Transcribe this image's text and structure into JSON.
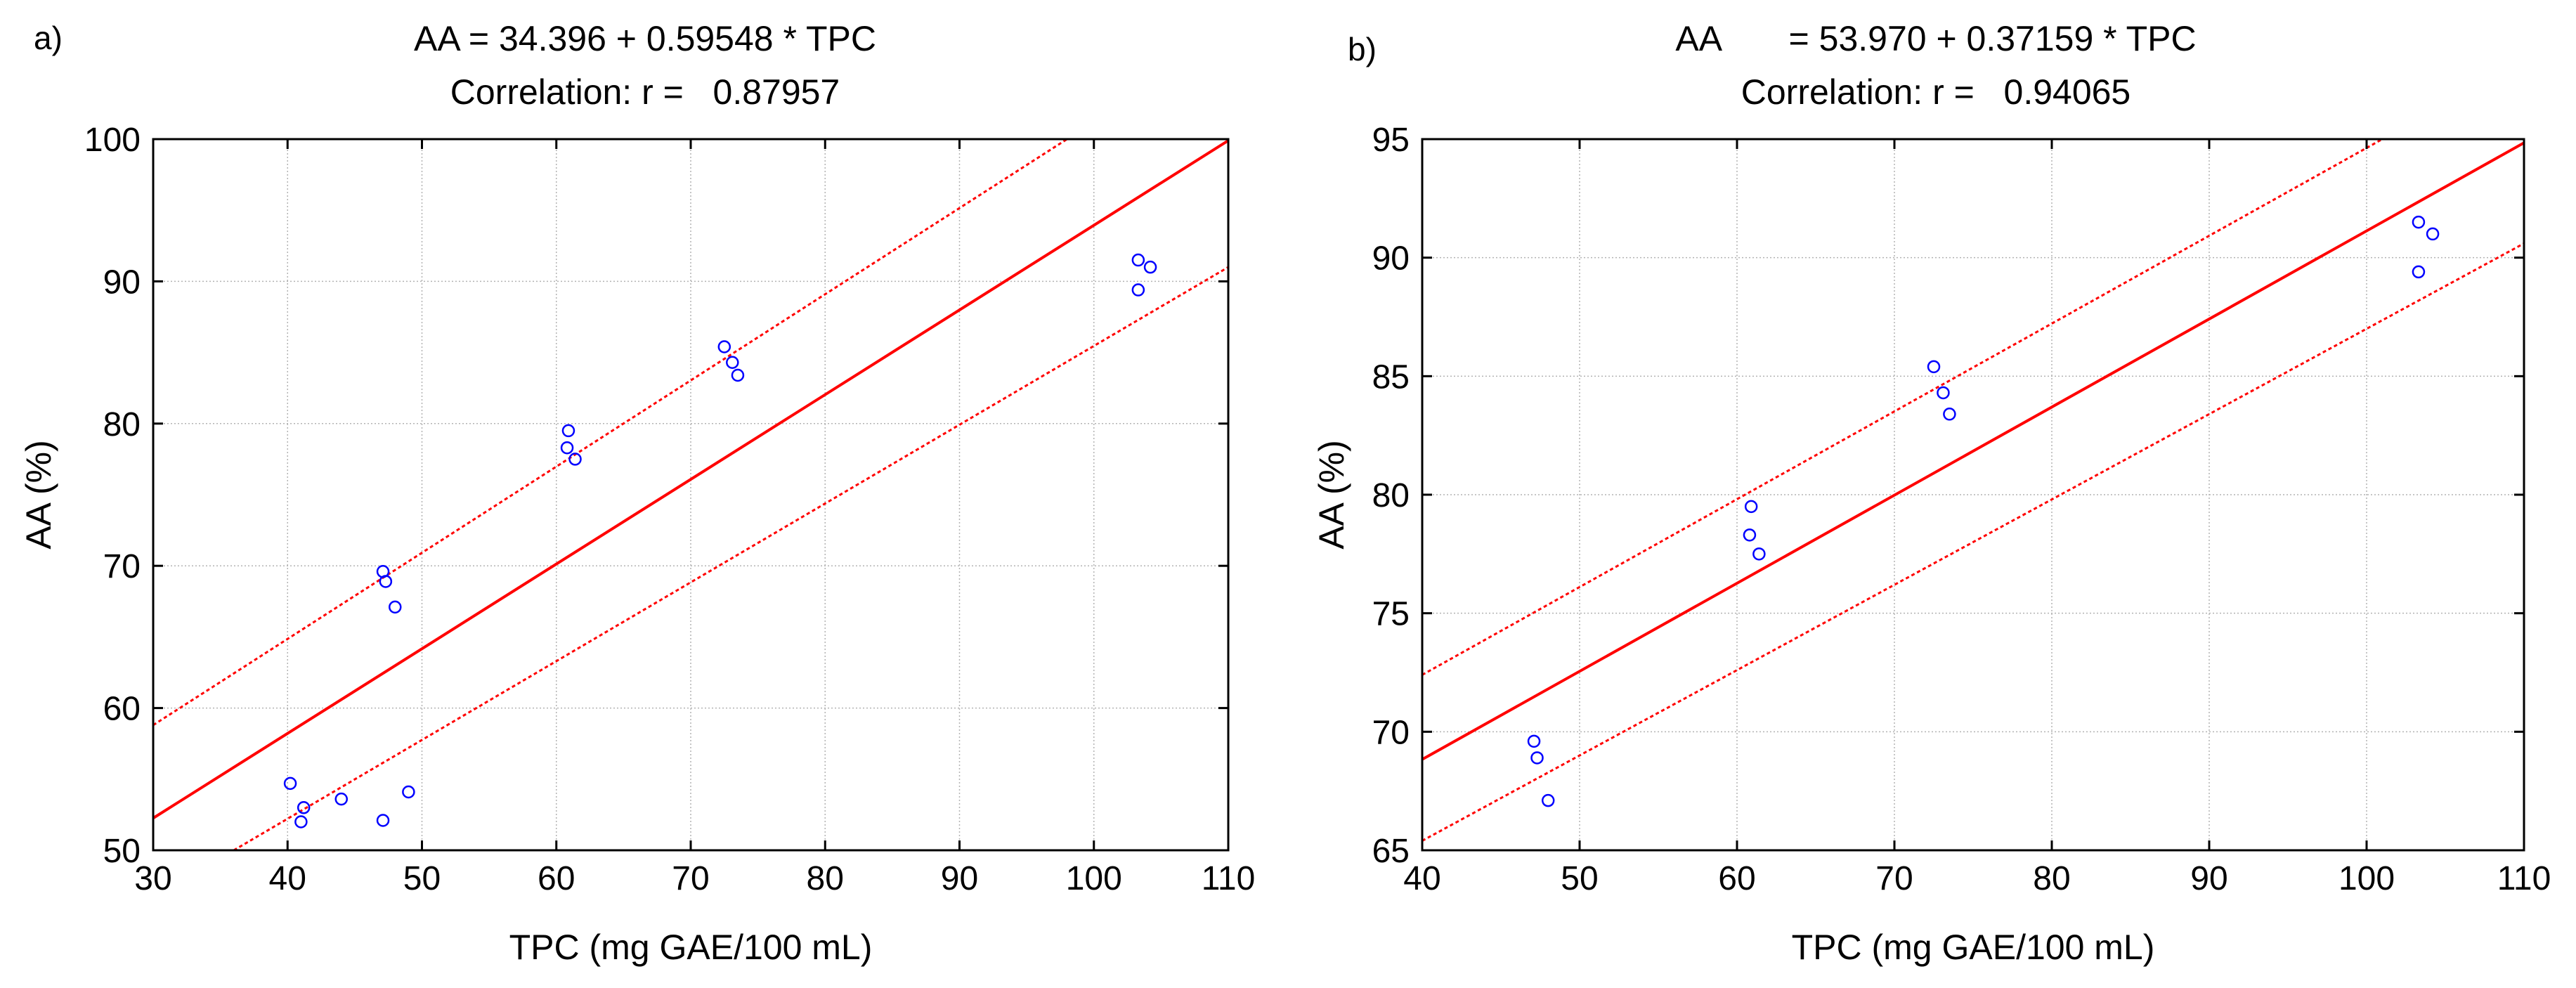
{
  "chart_data": [
    {
      "panel": "a)",
      "type": "scatter",
      "title_line1": "AA = 34.396 + 0.59548 * TPC",
      "title_line2": "Correlation: r =   0.87957",
      "xlabel": "TPC (mg GAE/100 mL)",
      "ylabel": "AA (%)",
      "xlim": [
        30,
        110
      ],
      "ylim": [
        50,
        100
      ],
      "xticks": [
        30,
        40,
        50,
        60,
        70,
        80,
        90,
        100,
        110
      ],
      "yticks": [
        50,
        60,
        70,
        80,
        90,
        100
      ],
      "grid": true,
      "regression": {
        "intercept": 34.396,
        "slope": 0.59548
      },
      "confidence_band": {
        "upper": [
          [
            30,
            58.8
          ],
          [
            98,
            100
          ]
        ],
        "lower": [
          [
            36,
            50
          ],
          [
            110,
            91
          ]
        ]
      },
      "points": [
        [
          40.2,
          54.7
        ],
        [
          41.2,
          53.0
        ],
        [
          41.0,
          52.0
        ],
        [
          44.0,
          53.6
        ],
        [
          47.1,
          52.1
        ],
        [
          49.0,
          54.1
        ],
        [
          47.1,
          69.6
        ],
        [
          47.3,
          68.9
        ],
        [
          48.0,
          67.1
        ],
        [
          60.9,
          79.5
        ],
        [
          60.8,
          78.3
        ],
        [
          61.4,
          77.5
        ],
        [
          72.5,
          85.4
        ],
        [
          73.1,
          84.3
        ],
        [
          73.5,
          83.4
        ],
        [
          103.3,
          91.5
        ],
        [
          104.2,
          91.0
        ],
        [
          103.3,
          89.4
        ]
      ],
      "colors": {
        "points": "#0000ff",
        "lines": "#ff0000"
      }
    },
    {
      "panel": "b)",
      "type": "scatter",
      "title_line1": "AA       = 53.970 + 0.37159 * TPC",
      "title_line2": "Correlation: r =   0.94065",
      "xlabel": "TPC (mg GAE/100 mL)",
      "ylabel": "AA (%)",
      "xlim": [
        40,
        110
      ],
      "ylim": [
        65,
        95
      ],
      "xticks": [
        40,
        50,
        60,
        70,
        80,
        90,
        100,
        110
      ],
      "yticks": [
        65,
        70,
        75,
        80,
        85,
        90,
        95
      ],
      "grid": true,
      "regression": {
        "intercept": 53.97,
        "slope": 0.37159
      },
      "confidence_band": {
        "upper": [
          [
            40,
            72.4
          ],
          [
            101,
            95
          ]
        ],
        "lower": [
          [
            40,
            65.4
          ],
          [
            110,
            90.6
          ]
        ]
      },
      "points": [
        [
          47.1,
          69.6
        ],
        [
          47.3,
          68.9
        ],
        [
          48.0,
          67.1
        ],
        [
          60.9,
          79.5
        ],
        [
          60.8,
          78.3
        ],
        [
          61.4,
          77.5
        ],
        [
          72.5,
          85.4
        ],
        [
          73.1,
          84.3
        ],
        [
          73.5,
          83.4
        ],
        [
          103.3,
          91.5
        ],
        [
          104.2,
          91.0
        ],
        [
          103.3,
          89.4
        ]
      ],
      "colors": {
        "points": "#0000ff",
        "lines": "#ff0000"
      }
    }
  ]
}
